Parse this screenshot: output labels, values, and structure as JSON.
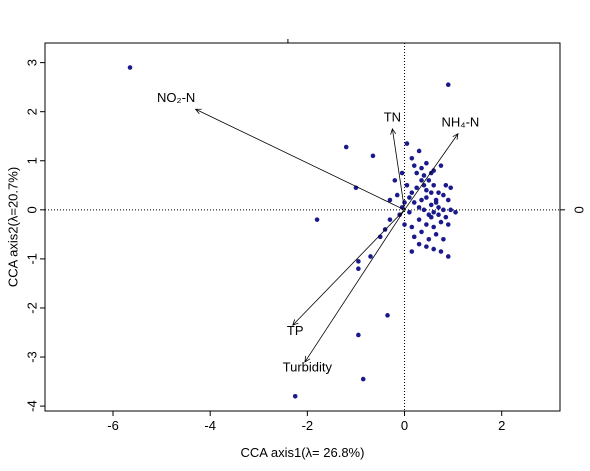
{
  "chart_data": {
    "type": "scatter",
    "title": "",
    "xlabel": "CCA axis1(λ= 26.8%)",
    "ylabel": "CCA axis2(λ=20.7%)",
    "xlim": [
      -7.4,
      3.2
    ],
    "ylim": [
      -4.1,
      3.4
    ],
    "x_ticks": [
      -6,
      -4,
      -2,
      0,
      2
    ],
    "y_ticks": [
      3,
      2,
      1,
      0,
      -1,
      -2,
      -3,
      -4
    ],
    "right_axis_label": "0",
    "grid": false,
    "reference_lines": {
      "x": 0,
      "y": 0
    },
    "colors": {
      "points": "#1a1a8c",
      "arrows": "#000000",
      "reference": "#000000"
    },
    "vectors": [
      {
        "name": "NO₂-N",
        "x": -4.3,
        "y": 2.05,
        "label_x": -4.7,
        "label_y": 2.2
      },
      {
        "name": "TN",
        "x": -0.25,
        "y": 1.65,
        "label_x": -0.25,
        "label_y": 1.8
      },
      {
        "name": "NH₄-N",
        "x": 1.1,
        "y": 1.55,
        "label_x": 1.15,
        "label_y": 1.7
      },
      {
        "name": "TP",
        "x": -2.3,
        "y": -2.35,
        "label_x": -2.25,
        "label_y": -2.55
      },
      {
        "name": "Turbidity",
        "x": -2.05,
        "y": -3.1,
        "label_x": -2.0,
        "label_y": -3.3
      }
    ],
    "points": [
      [
        -5.65,
        2.9
      ],
      [
        0.9,
        2.55
      ],
      [
        -1.2,
        1.28
      ],
      [
        -0.65,
        1.1
      ],
      [
        -1.0,
        0.45
      ],
      [
        -1.8,
        -0.2
      ],
      [
        -0.95,
        -1.05
      ],
      [
        -0.95,
        -1.2
      ],
      [
        -0.7,
        -0.95
      ],
      [
        -0.5,
        -0.55
      ],
      [
        -0.4,
        -0.4
      ],
      [
        -0.3,
        -0.2
      ],
      [
        -0.1,
        -0.1
      ],
      [
        -0.35,
        -2.15
      ],
      [
        -0.95,
        -2.55
      ],
      [
        -0.85,
        -3.45
      ],
      [
        -2.25,
        -3.8
      ],
      [
        -0.3,
        0.2
      ],
      [
        0.05,
        1.35
      ],
      [
        0.15,
        1.05
      ],
      [
        0.3,
        1.2
      ],
      [
        0.45,
        0.95
      ],
      [
        0.6,
        0.8
      ],
      [
        0.75,
        0.9
      ],
      [
        -0.2,
        0.6
      ],
      [
        -0.05,
        0.75
      ],
      [
        0.05,
        0.5
      ],
      [
        0.1,
        0.25
      ],
      [
        0.25,
        0.45
      ],
      [
        0.35,
        0.6
      ],
      [
        0.4,
        0.5
      ],
      [
        0.5,
        0.6
      ],
      [
        0.6,
        0.5
      ],
      [
        0.55,
        0.35
      ],
      [
        0.45,
        0.25
      ],
      [
        0.35,
        0.2
      ],
      [
        0.3,
        0.05
      ],
      [
        0.4,
        0.0
      ],
      [
        0.55,
        0.1
      ],
      [
        0.65,
        0.2
      ],
      [
        0.7,
        0.35
      ],
      [
        0.8,
        0.3
      ],
      [
        0.9,
        0.2
      ],
      [
        0.5,
        -0.1
      ],
      [
        0.6,
        -0.05
      ],
      [
        0.7,
        0.05
      ],
      [
        0.8,
        0.0
      ],
      [
        0.85,
        -0.15
      ],
      [
        0.95,
        0.0
      ],
      [
        1.05,
        -0.05
      ],
      [
        0.15,
        0.35
      ],
      [
        0.2,
        0.15
      ],
      [
        0.3,
        -0.2
      ],
      [
        0.45,
        -0.3
      ],
      [
        0.6,
        -0.35
      ],
      [
        0.75,
        -0.25
      ],
      [
        0.9,
        -0.3
      ],
      [
        0.35,
        -0.45
      ],
      [
        0.5,
        -0.6
      ],
      [
        0.65,
        -0.5
      ],
      [
        0.8,
        -0.6
      ],
      [
        0.3,
        -0.7
      ],
      [
        0.45,
        -0.75
      ],
      [
        0.6,
        -0.8
      ],
      [
        0.75,
        -0.85
      ],
      [
        0.9,
        -0.95
      ],
      [
        0.15,
        -0.85
      ],
      [
        0.2,
        -0.55
      ],
      [
        0.0,
        -0.3
      ],
      [
        0.1,
        -0.05
      ],
      [
        0.25,
        0.75
      ],
      [
        0.4,
        0.7
      ],
      [
        -0.15,
        0.3
      ],
      [
        0.0,
        0.15
      ],
      [
        0.95,
        0.45
      ],
      [
        0.55,
        0.75
      ],
      [
        0.2,
        0.9
      ],
      [
        0.65,
        0.15
      ],
      [
        0.45,
        0.4
      ],
      [
        0.85,
        0.5
      ],
      [
        0.35,
        0.85
      ],
      [
        -0.05,
        0.05
      ],
      [
        0.15,
        -0.35
      ],
      [
        0.55,
        -0.15
      ],
      [
        0.7,
        -0.1
      ]
    ]
  }
}
